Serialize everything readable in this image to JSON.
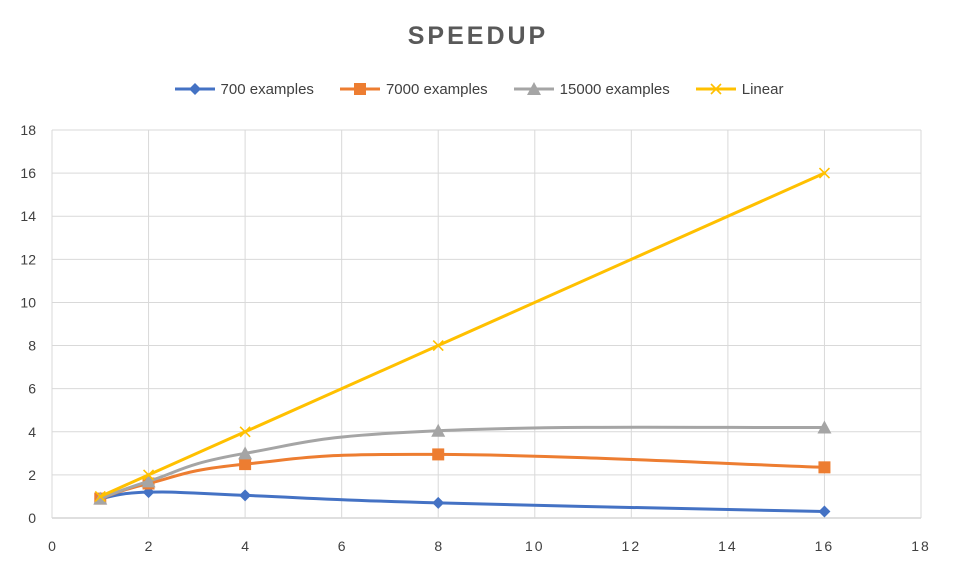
{
  "chart_data": {
    "type": "line",
    "title": "SPEEDUP",
    "xlabel": "",
    "ylabel": "",
    "xlim": [
      0,
      18
    ],
    "ylim": [
      0,
      18
    ],
    "xticks": [
      0,
      2,
      4,
      6,
      8,
      10,
      12,
      14,
      16,
      18
    ],
    "yticks": [
      0,
      2,
      4,
      6,
      8,
      10,
      12,
      14,
      16,
      18
    ],
    "xtick_labels": [
      "0",
      "2",
      "4",
      "6",
      "8",
      "10",
      "12",
      "14",
      "16",
      "18"
    ],
    "ytick_labels": [
      "0",
      "2",
      "4",
      "6",
      "8",
      "10",
      "12",
      "14",
      "16",
      "18"
    ],
    "grid": true,
    "legend_position": "top",
    "x": [
      1,
      2,
      4,
      8,
      16
    ],
    "series": [
      {
        "name": "700 examples",
        "values": [
          0.9,
          1.2,
          1.05,
          0.7,
          0.3
        ],
        "color": "#4472C4",
        "marker": "diamond",
        "smooth": true
      },
      {
        "name": "7000 examples",
        "values": [
          0.9,
          1.6,
          2.5,
          2.95,
          2.35
        ],
        "color": "#ED7D31",
        "marker": "square",
        "smooth": true
      },
      {
        "name": "15000 examples",
        "values": [
          0.9,
          1.7,
          3.0,
          4.05,
          4.2
        ],
        "color": "#A5A5A5",
        "marker": "triangle",
        "smooth": true
      },
      {
        "name": "Linear",
        "values": [
          1,
          2,
          4,
          8,
          16
        ],
        "color": "#FFC000",
        "marker": "x",
        "smooth": false
      }
    ]
  }
}
